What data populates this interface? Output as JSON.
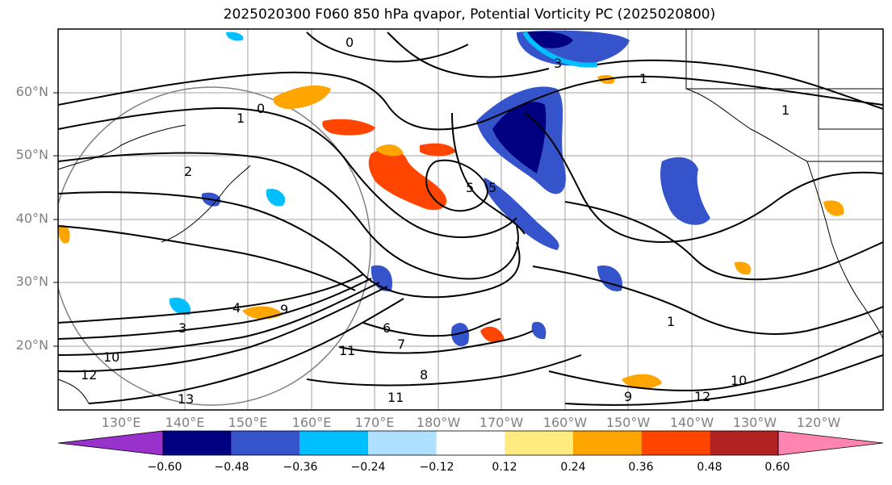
{
  "title": "2025020300 F060 850 hPa qvapor, Potential Vorticity PC (2025020800)",
  "lat_labels": [
    "60°N",
    "50°N",
    "40°N",
    "30°N",
    "20°N"
  ],
  "lon_labels": [
    "130°E",
    "140°E",
    "150°E",
    "160°E",
    "170°E",
    "180°W",
    "170°W",
    "160°W",
    "150°W",
    "140°W",
    "130°W",
    "120°W"
  ],
  "colorbar": {
    "colors": [
      "#9932cc",
      "#000080",
      "#3554cc",
      "#00bfff",
      "#b0e0ff",
      "#ffffff",
      "#ffeb80",
      "#ffa500",
      "#ff4500",
      "#b22222",
      "#ff85b0"
    ],
    "tick_labels": [
      "−0.60",
      "−0.48",
      "−0.36",
      "−0.24",
      "−0.12",
      "0.12",
      "0.24",
      "0.36",
      "0.48",
      "0.60"
    ]
  },
  "contour_labels": [
    "0",
    "1",
    "1",
    "2",
    "3",
    "3",
    "4",
    "5",
    "5",
    "6",
    "7",
    "8",
    "9",
    "9",
    "10",
    "10",
    "11",
    "11",
    "12",
    "12",
    "13",
    "1",
    "1",
    "0"
  ]
}
